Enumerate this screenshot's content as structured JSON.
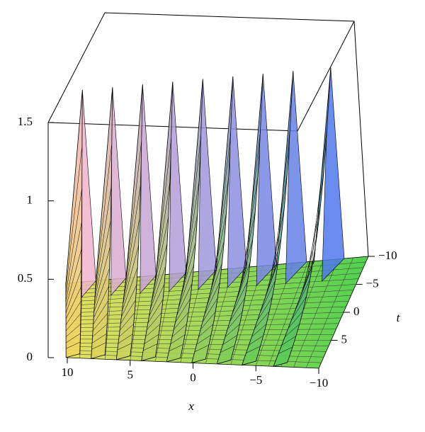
{
  "chart_data": {
    "type": "surface",
    "xlabel": "x",
    "ylabel": "t",
    "xlim": [
      -10,
      10
    ],
    "ylim": [
      -10,
      10
    ],
    "zlim": [
      0,
      1.5
    ],
    "xticks": [
      10,
      5,
      0,
      {
        "value": -5,
        "label": "−5"
      },
      {
        "value": -10,
        "label": "−10"
      }
    ],
    "yticks": [
      {
        "value": -10,
        "label": "−10"
      },
      {
        "value": -5,
        "label": "−5"
      },
      0,
      5
    ],
    "zticks": [
      0,
      0.5,
      1,
      1.5
    ],
    "peak_x": [
      9,
      7,
      5,
      3,
      1,
      -1,
      -3,
      -5,
      -7.5
    ],
    "peak_z": [
      1.55,
      1.55,
      1.55,
      1.55,
      1.55,
      1.55,
      1.55,
      1.55,
      1.55
    ]
  }
}
